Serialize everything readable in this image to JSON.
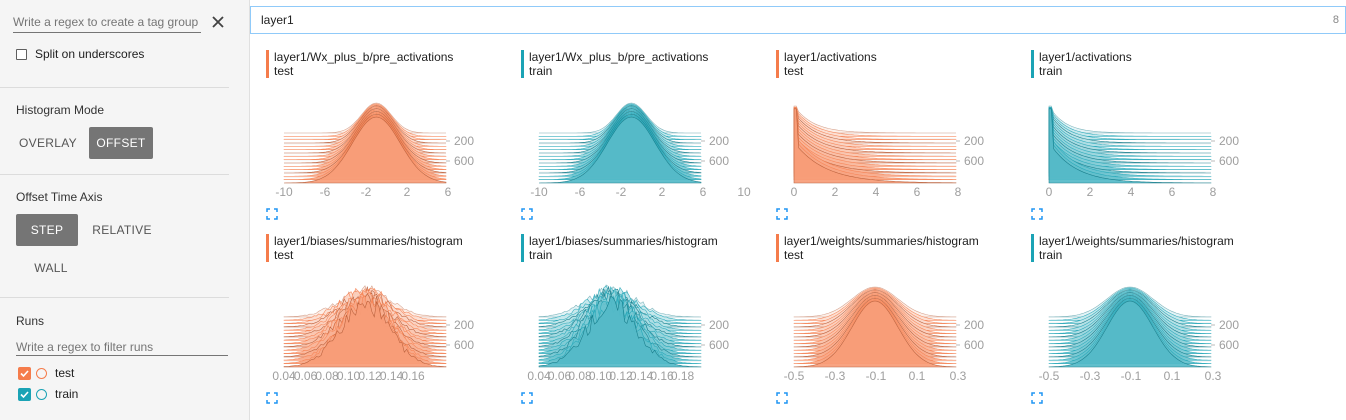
{
  "sidebar": {
    "tag_filter_placeholder": "Write a regex to create a tag group",
    "split_label": "Split on underscores",
    "histogram_mode": {
      "title": "Histogram Mode",
      "overlay": "OVERLAY",
      "offset": "OFFSET",
      "selected": "offset"
    },
    "offset_axis": {
      "title": "Offset Time Axis",
      "step": "STEP",
      "relative": "RELATIVE",
      "wall": "WALL",
      "selected": "step"
    },
    "runs": {
      "title": "Runs",
      "filter_placeholder": "Write a regex to filter runs",
      "items": [
        {
          "label": "test",
          "color": "#f57c4b",
          "checked": true
        },
        {
          "label": "train",
          "color": "#1ba3b5",
          "checked": true
        }
      ]
    }
  },
  "search": {
    "value": "layer1",
    "count": "8"
  },
  "colors": {
    "test": "#f57c4b",
    "train": "#1ba3b5"
  },
  "cards": [
    {
      "tag": "layer1/Wx_plus_b/pre_activations",
      "run": "test",
      "shape": "gauss",
      "peak": 0.57,
      "width": 0.13,
      "x_ticks": [
        "-10",
        "-6",
        "-2",
        "2",
        "6"
      ],
      "y_ticks": [
        "200",
        "600"
      ]
    },
    {
      "tag": "layer1/Wx_plus_b/pre_activations",
      "run": "train",
      "shape": "gauss",
      "peak": 0.57,
      "width": 0.13,
      "x_ticks": [
        "-10",
        "-6",
        "-2",
        "2",
        "6",
        "10"
      ],
      "y_ticks": [
        "200",
        "600"
      ]
    },
    {
      "tag": "layer1/activations",
      "run": "test",
      "shape": "decay",
      "peak": 0.0,
      "width": 0.12,
      "x_ticks": [
        "0",
        "2",
        "4",
        "6",
        "8"
      ],
      "y_ticks": [
        "200",
        "600"
      ]
    },
    {
      "tag": "layer1/activations",
      "run": "train",
      "shape": "decay",
      "peak": 0.0,
      "width": 0.1,
      "x_ticks": [
        "0",
        "2",
        "4",
        "6",
        "8"
      ],
      "y_ticks": [
        "200",
        "600"
      ]
    },
    {
      "tag": "layer1/biases/summaries/histogram",
      "run": "test",
      "shape": "rough",
      "peak": 0.5,
      "width": 0.22,
      "x_ticks": [
        "0.04",
        "0.06",
        "0.08",
        "0.10",
        "0.12",
        "0.14",
        "0.16"
      ],
      "y_ticks": [
        "200",
        "600"
      ]
    },
    {
      "tag": "layer1/biases/summaries/histogram",
      "run": "train",
      "shape": "rough",
      "peak": 0.45,
      "width": 0.22,
      "x_ticks": [
        "0.04",
        "0.06",
        "0.08",
        "0.10",
        "0.12",
        "0.14",
        "0.16",
        "0.18"
      ],
      "y_ticks": [
        "200",
        "600"
      ]
    },
    {
      "tag": "layer1/weights/summaries/histogram",
      "run": "test",
      "shape": "bell",
      "peak": 0.5,
      "width": 0.2,
      "x_ticks": [
        "-0.5",
        "-0.3",
        "-0.1",
        "0.1",
        "0.3"
      ],
      "y_ticks": [
        "200",
        "600"
      ]
    },
    {
      "tag": "layer1/weights/summaries/histogram",
      "run": "train",
      "shape": "bell",
      "peak": 0.5,
      "width": 0.2,
      "x_ticks": [
        "-0.5",
        "-0.3",
        "-0.1",
        "0.1",
        "0.3"
      ],
      "y_ticks": [
        "200",
        "600"
      ]
    }
  ]
}
